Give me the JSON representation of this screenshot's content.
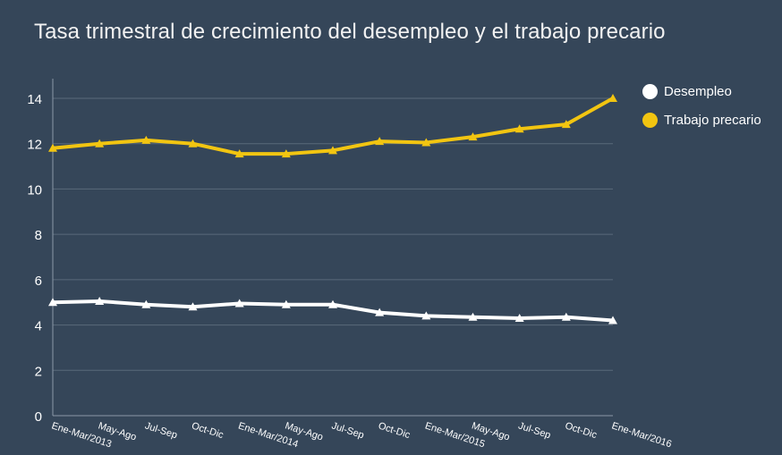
{
  "title": "Tasa trimestral de crecimiento del desempleo y el trabajo precario",
  "colors": {
    "background": "#354659",
    "grid": "#5a6a7b",
    "axis": "#8a98a8",
    "desempleo": "#ffffff",
    "precario": "#f2c511"
  },
  "legend": [
    {
      "label": "Desempleo",
      "color": "#ffffff"
    },
    {
      "label": "Trabajo precario",
      "color": "#f2c511"
    }
  ],
  "chart_data": {
    "type": "line",
    "title": "Tasa trimestral de crecimiento del desempleo y el trabajo precario",
    "xlabel": "",
    "ylabel": "",
    "ylim": [
      0,
      15
    ],
    "yticks": [
      0,
      2,
      4,
      6,
      8,
      10,
      12,
      14
    ],
    "grid": true,
    "legend_position": "right",
    "categories": [
      "Ene-Mar/2013",
      "May-Ago",
      "Jul-Sep",
      "Oct-Dic",
      "Ene-Mar/2014",
      "May-Ago",
      "Jul-Sep",
      "Oct-Dic",
      "Ene-Mar/2015",
      "May-Ago",
      "Jul-Sep",
      "Oct-Dic",
      "Ene-Mar/2016"
    ],
    "series": [
      {
        "name": "Desempleo",
        "color": "#ffffff",
        "values": [
          5.0,
          5.05,
          4.9,
          4.8,
          4.95,
          4.9,
          4.9,
          4.55,
          4.4,
          4.35,
          4.3,
          4.35,
          4.2
        ]
      },
      {
        "name": "Trabajo precario",
        "color": "#f2c511",
        "values": [
          11.8,
          12.0,
          12.15,
          12.0,
          11.55,
          11.55,
          11.7,
          12.1,
          12.05,
          12.3,
          12.65,
          12.85,
          14.0
        ]
      }
    ]
  }
}
